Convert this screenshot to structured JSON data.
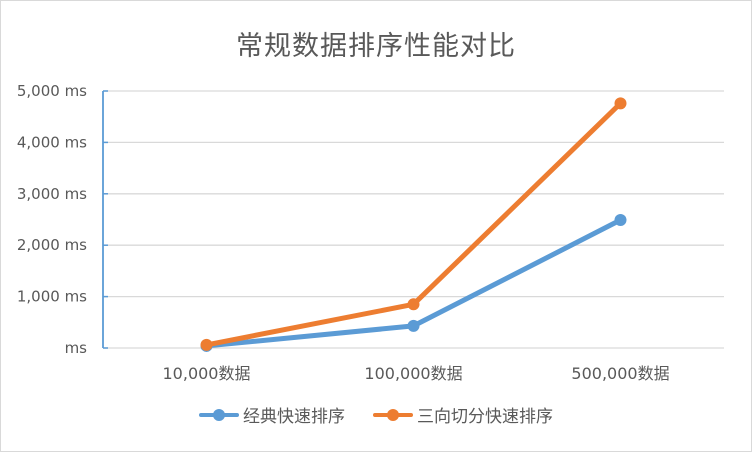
{
  "chart_data": {
    "type": "line",
    "title": "常规数据排序性能对比",
    "xlabel": "",
    "ylabel": "",
    "categories": [
      "10,000数据",
      "100,000数据",
      "500,000数据"
    ],
    "series": [
      {
        "name": "经典快速排序",
        "color": "#5b9bd5",
        "values": [
          40,
          430,
          2490
        ]
      },
      {
        "name": "三向切分快速排序",
        "color": "#ed7d31",
        "values": [
          60,
          850,
          4760
        ]
      }
    ],
    "yticks": [
      "ms",
      "1,000 ms",
      "2,000 ms",
      "3,000 ms",
      "4,000 ms",
      "5,000 ms"
    ],
    "ylim": [
      0,
      5000
    ],
    "grid": true,
    "legend_position": "bottom"
  }
}
